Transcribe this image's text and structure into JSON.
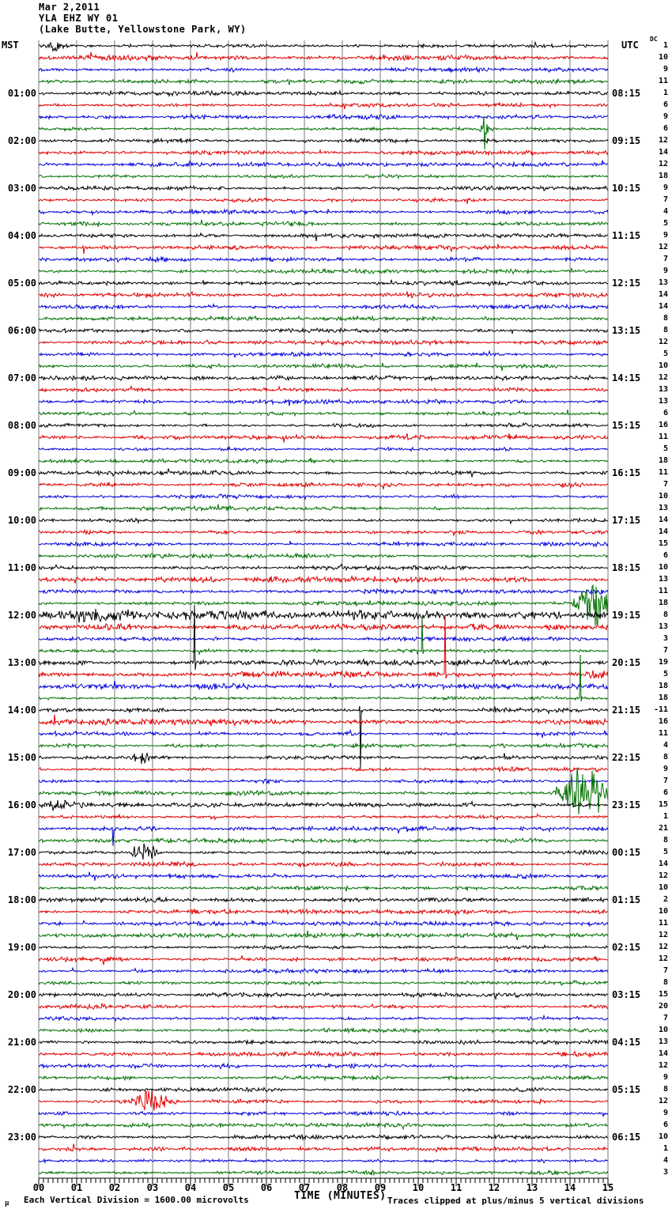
{
  "header": {
    "date": "Mar 2,2011",
    "station": "YLA EHZ WY 01",
    "location": "(Lake Butte, Yellowstone Park, WY)"
  },
  "axes": {
    "left_title": "MST",
    "right_title": "UTC",
    "dc_header": "DC",
    "x_title": "TIME (MINUTES)"
  },
  "footer": {
    "micro_glyph": "μ",
    "scale_note": "Each Vertical Division = 1600.00 microvolts",
    "clip_note": "Traces clipped at plus/minus 5 vertical divisions"
  },
  "chart_data": {
    "type": "line",
    "subtype": "helicorder-seismogram",
    "title": "YLA EHZ WY 01 — Lake Butte, Yellowstone Park, WY — Mar 2,2011",
    "xlabel": "TIME (MINUTES)",
    "x_range": [
      0,
      15
    ],
    "x_ticks": [
      "00",
      "01",
      "02",
      "03",
      "04",
      "05",
      "06",
      "07",
      "08",
      "09",
      "10",
      "11",
      "12",
      "13",
      "14",
      "15"
    ],
    "minor_ticks_per_minute": 8,
    "minutes_per_line": 15,
    "grid": true,
    "grid_color": "#7a7a7a",
    "trace_color_cycle": [
      "#000000",
      "#e00000",
      "#0000dd",
      "#007000"
    ],
    "rows": [
      {
        "dc": 1,
        "mst": "",
        "utc": ""
      },
      {
        "dc": 10,
        "mst": "",
        "utc": ""
      },
      {
        "dc": 9,
        "mst": "",
        "utc": ""
      },
      {
        "dc": 11,
        "mst": "",
        "utc": ""
      },
      {
        "dc": 1,
        "mst": "01:00",
        "utc": "08:15"
      },
      {
        "dc": 6,
        "mst": "",
        "utc": ""
      },
      {
        "dc": 9,
        "mst": "",
        "utc": ""
      },
      {
        "dc": 6,
        "mst": "",
        "utc": ""
      },
      {
        "dc": 12,
        "mst": "02:00",
        "utc": "09:15"
      },
      {
        "dc": 14,
        "mst": "",
        "utc": ""
      },
      {
        "dc": 12,
        "mst": "",
        "utc": ""
      },
      {
        "dc": 18,
        "mst": "",
        "utc": ""
      },
      {
        "dc": 9,
        "mst": "03:00",
        "utc": "10:15"
      },
      {
        "dc": 7,
        "mst": "",
        "utc": ""
      },
      {
        "dc": 4,
        "mst": "",
        "utc": ""
      },
      {
        "dc": 5,
        "mst": "",
        "utc": ""
      },
      {
        "dc": 9,
        "mst": "04:00",
        "utc": "11:15"
      },
      {
        "dc": 12,
        "mst": "",
        "utc": ""
      },
      {
        "dc": 7,
        "mst": "",
        "utc": ""
      },
      {
        "dc": 9,
        "mst": "",
        "utc": ""
      },
      {
        "dc": 13,
        "mst": "05:00",
        "utc": "12:15"
      },
      {
        "dc": 14,
        "mst": "",
        "utc": ""
      },
      {
        "dc": 14,
        "mst": "",
        "utc": ""
      },
      {
        "dc": 8,
        "mst": "",
        "utc": ""
      },
      {
        "dc": 8,
        "mst": "06:00",
        "utc": "13:15"
      },
      {
        "dc": 12,
        "mst": "",
        "utc": ""
      },
      {
        "dc": 5,
        "mst": "",
        "utc": ""
      },
      {
        "dc": 10,
        "mst": "",
        "utc": ""
      },
      {
        "dc": 12,
        "mst": "07:00",
        "utc": "14:15"
      },
      {
        "dc": 13,
        "mst": "",
        "utc": ""
      },
      {
        "dc": 13,
        "mst": "",
        "utc": ""
      },
      {
        "dc": 6,
        "mst": "",
        "utc": ""
      },
      {
        "dc": 16,
        "mst": "08:00",
        "utc": "15:15"
      },
      {
        "dc": 11,
        "mst": "",
        "utc": ""
      },
      {
        "dc": 5,
        "mst": "",
        "utc": ""
      },
      {
        "dc": 18,
        "mst": "",
        "utc": ""
      },
      {
        "dc": 11,
        "mst": "09:00",
        "utc": "16:15"
      },
      {
        "dc": 7,
        "mst": "",
        "utc": ""
      },
      {
        "dc": 10,
        "mst": "",
        "utc": ""
      },
      {
        "dc": 13,
        "mst": "",
        "utc": ""
      },
      {
        "dc": 14,
        "mst": "10:00",
        "utc": "17:15"
      },
      {
        "dc": 14,
        "mst": "",
        "utc": ""
      },
      {
        "dc": 15,
        "mst": "",
        "utc": ""
      },
      {
        "dc": 6,
        "mst": "",
        "utc": ""
      },
      {
        "dc": 10,
        "mst": "11:00",
        "utc": "18:15"
      },
      {
        "dc": 13,
        "mst": "",
        "utc": ""
      },
      {
        "dc": 11,
        "mst": "",
        "utc": ""
      },
      {
        "dc": 18,
        "mst": "",
        "utc": ""
      },
      {
        "dc": 8,
        "mst": "12:00",
        "utc": "19:15"
      },
      {
        "dc": 13,
        "mst": "",
        "utc": ""
      },
      {
        "dc": 3,
        "mst": "",
        "utc": ""
      },
      {
        "dc": 7,
        "mst": "",
        "utc": ""
      },
      {
        "dc": 19,
        "mst": "13:00",
        "utc": "20:15"
      },
      {
        "dc": 5,
        "mst": "",
        "utc": ""
      },
      {
        "dc": 18,
        "mst": "",
        "utc": ""
      },
      {
        "dc": 18,
        "mst": "",
        "utc": ""
      },
      {
        "dc": -11,
        "mst": "14:00",
        "utc": "21:15"
      },
      {
        "dc": 16,
        "mst": "",
        "utc": ""
      },
      {
        "dc": 11,
        "mst": "",
        "utc": ""
      },
      {
        "dc": 4,
        "mst": "",
        "utc": ""
      },
      {
        "dc": 8,
        "mst": "15:00",
        "utc": "22:15"
      },
      {
        "dc": 9,
        "mst": "",
        "utc": ""
      },
      {
        "dc": 7,
        "mst": "",
        "utc": ""
      },
      {
        "dc": 6,
        "mst": "",
        "utc": ""
      },
      {
        "dc": 15,
        "mst": "16:00",
        "utc": "23:15"
      },
      {
        "dc": 1,
        "mst": "",
        "utc": ""
      },
      {
        "dc": 21,
        "mst": "",
        "utc": ""
      },
      {
        "dc": 8,
        "mst": "",
        "utc": ""
      },
      {
        "dc": 5,
        "mst": "17:00",
        "utc": "00:15"
      },
      {
        "dc": 14,
        "mst": "",
        "utc": ""
      },
      {
        "dc": 12,
        "mst": "",
        "utc": ""
      },
      {
        "dc": 10,
        "mst": "",
        "utc": ""
      },
      {
        "dc": 2,
        "mst": "18:00",
        "utc": "01:15"
      },
      {
        "dc": 10,
        "mst": "",
        "utc": ""
      },
      {
        "dc": 11,
        "mst": "",
        "utc": ""
      },
      {
        "dc": 12,
        "mst": "",
        "utc": ""
      },
      {
        "dc": 12,
        "mst": "19:00",
        "utc": "02:15"
      },
      {
        "dc": 12,
        "mst": "",
        "utc": ""
      },
      {
        "dc": 7,
        "mst": "",
        "utc": ""
      },
      {
        "dc": 8,
        "mst": "",
        "utc": ""
      },
      {
        "dc": 15,
        "mst": "20:00",
        "utc": "03:15"
      },
      {
        "dc": 20,
        "mst": "",
        "utc": ""
      },
      {
        "dc": 7,
        "mst": "",
        "utc": ""
      },
      {
        "dc": 10,
        "mst": "",
        "utc": ""
      },
      {
        "dc": 13,
        "mst": "21:00",
        "utc": "04:15"
      },
      {
        "dc": 14,
        "mst": "",
        "utc": ""
      },
      {
        "dc": 12,
        "mst": "",
        "utc": ""
      },
      {
        "dc": 9,
        "mst": "",
        "utc": ""
      },
      {
        "dc": 8,
        "mst": "22:00",
        "utc": "05:15"
      },
      {
        "dc": 12,
        "mst": "",
        "utc": ""
      },
      {
        "dc": 9,
        "mst": "",
        "utc": ""
      },
      {
        "dc": 6,
        "mst": "",
        "utc": ""
      },
      {
        "dc": 10,
        "mst": "23:00",
        "utc": "06:15"
      },
      {
        "dc": 1,
        "mst": "",
        "utc": ""
      },
      {
        "dc": 4,
        "mst": "",
        "utc": ""
      },
      {
        "dc": 3,
        "mst": "",
        "utc": ""
      }
    ],
    "events": [
      {
        "row": 1,
        "x_min": 0.48,
        "kind": "burst",
        "amp": 7,
        "width_min": 0.18
      },
      {
        "row": 8,
        "x_min": 11.73,
        "kind": "spike-burst",
        "up": 16,
        "down": 26,
        "amp": 6,
        "width_min": 0.2
      },
      {
        "row": 17,
        "x_min": 7.3,
        "kind": "spike",
        "up": 2,
        "down": 7
      },
      {
        "row": 18,
        "x_min": 1.17,
        "kind": "spike",
        "up": 2,
        "down": 8
      },
      {
        "row": 34,
        "x_min": 9.7,
        "kind": "spike",
        "up": 5,
        "down": 3
      },
      {
        "row": 34,
        "x_min": 12.4,
        "kind": "spike",
        "up": 5,
        "down": 3
      },
      {
        "row": 47,
        "x_min": 14.8,
        "kind": "burst",
        "amp": 5,
        "width_min": 0.3
      },
      {
        "row": 48,
        "x_min": 14.6,
        "kind": "burst",
        "amp": 22,
        "width_min": 0.4
      },
      {
        "row": 49,
        "x_min": 1.4,
        "kind": "burst",
        "amp": 6,
        "width_min": 1.4
      },
      {
        "row": 52,
        "x_min": 10.1,
        "kind": "spike",
        "up": 43,
        "down": 4
      },
      {
        "row": 53,
        "x_min": 4.1,
        "kind": "spike",
        "up": 73,
        "down": 9
      },
      {
        "row": 54,
        "x_min": 10.71,
        "kind": "spike",
        "up": 75,
        "down": 5
      },
      {
        "row": 56,
        "x_min": 14.27,
        "kind": "spike",
        "up": 55,
        "down": 4
      },
      {
        "row": 57,
        "x_min": 8.46,
        "kind": "spike",
        "up": 5,
        "down": 75
      },
      {
        "row": 61,
        "x_min": 2.69,
        "kind": "burst",
        "amp": 9,
        "width_min": 0.22
      },
      {
        "row": 64,
        "x_min": 14.35,
        "kind": "burst",
        "amp": 28,
        "width_min": 0.55
      },
      {
        "row": 65,
        "x_min": 0.54,
        "kind": "burst",
        "amp": 5,
        "width_min": 0.5
      },
      {
        "row": 67,
        "x_min": 1.94,
        "kind": "spike",
        "up": 2,
        "down": 22
      },
      {
        "row": 69,
        "x_min": 2.77,
        "kind": "burst",
        "amp": 9,
        "width_min": 0.3
      },
      {
        "row": 90,
        "x_min": 2.98,
        "kind": "burst",
        "amp": 13,
        "width_min": 0.45
      }
    ],
    "noise_amp_default": 2.2,
    "noise_amp_overrides": {
      "2": 2.8,
      "22": 2.6,
      "46": 3.2,
      "49": 4.5,
      "50": 3.2,
      "53": 3.0,
      "54": 3.8,
      "55": 3.0,
      "58": 3.2,
      "86": 2.6
    },
    "clip_divisions": 5,
    "microvolts_per_division": 1600.0
  }
}
